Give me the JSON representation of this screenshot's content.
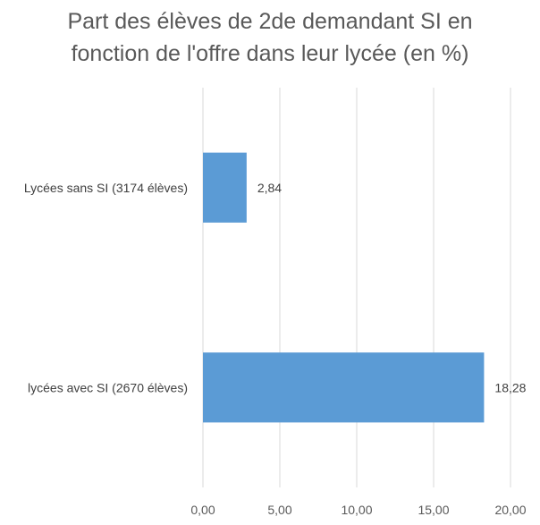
{
  "chart_data": {
    "type": "bar",
    "orientation": "horizontal",
    "title": "Part des élèves de 2de demandant SI en fonction de l'offre dans leur lycée (en %)",
    "categories": [
      "Lycées sans SI (3174 élèves)",
      "lycées avec SI (2670 élèves)"
    ],
    "values": [
      2.84,
      18.28
    ],
    "data_labels": [
      "2,84",
      "18,28"
    ],
    "xlim": [
      0,
      20
    ],
    "x_ticks": [
      0,
      5,
      10,
      15,
      20
    ],
    "x_tick_labels": [
      "0,00",
      "5,00",
      "10,00",
      "15,00",
      "20,00"
    ],
    "grid": true,
    "legend": "none",
    "bar_color": "#5B9BD5",
    "grid_color": "#D9D9D9"
  }
}
